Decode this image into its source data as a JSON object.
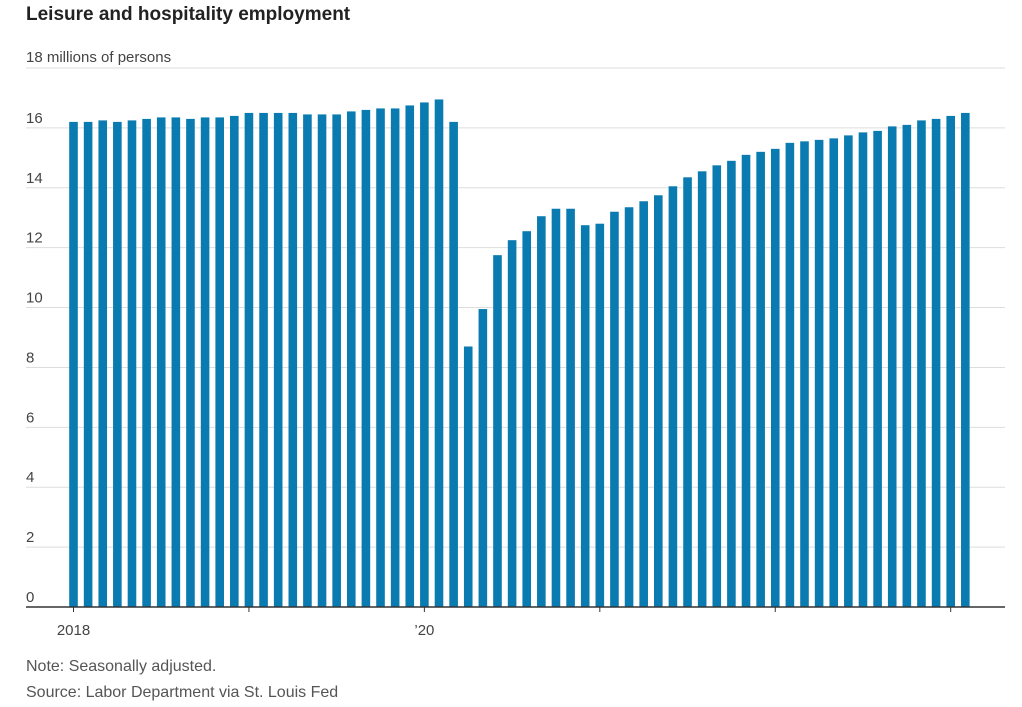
{
  "header": {
    "title": "Leisure and hospitality employment",
    "unit_label": "18 millions of persons"
  },
  "footer": {
    "note": "Note: Seasonally adjusted.",
    "source": "Source: Labor Department via St. Louis Fed"
  },
  "colors": {
    "bar": "#0a7bb0",
    "grid": "#dddddd",
    "axis": "#333333"
  },
  "chart_data": {
    "type": "bar",
    "ylabel": "millions of persons",
    "ylim": [
      0,
      18
    ],
    "yticks": [
      0,
      2,
      4,
      6,
      8,
      10,
      12,
      14,
      16
    ],
    "grid": true,
    "x_tick_labels": [
      {
        "index": 0,
        "label": "2018"
      },
      {
        "index": 24,
        "label": "’20"
      }
    ],
    "x_tick_marks": [
      0,
      12,
      24,
      36,
      48,
      60
    ],
    "values": [
      16.2,
      16.2,
      16.25,
      16.2,
      16.25,
      16.3,
      16.35,
      16.35,
      16.3,
      16.35,
      16.35,
      16.4,
      16.5,
      16.5,
      16.5,
      16.5,
      16.45,
      16.45,
      16.45,
      16.55,
      16.6,
      16.65,
      16.65,
      16.75,
      16.85,
      16.95,
      16.2,
      8.7,
      9.95,
      11.75,
      12.25,
      12.55,
      13.05,
      13.3,
      13.3,
      12.75,
      12.8,
      13.2,
      13.35,
      13.55,
      13.75,
      14.05,
      14.35,
      14.55,
      14.75,
      14.9,
      15.1,
      15.2,
      15.3,
      15.5,
      15.55,
      15.6,
      15.65,
      15.75,
      15.85,
      15.9,
      16.05,
      16.1,
      16.25,
      16.3,
      16.4,
      16.5
    ]
  }
}
